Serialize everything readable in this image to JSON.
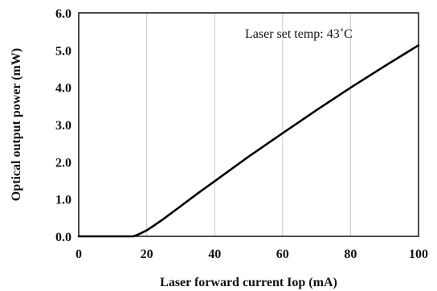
{
  "chart_data": {
    "type": "line",
    "xlabel": "Laser forward current Iop (mA)",
    "ylabel": "Optical output power (mW)",
    "annotation": "Laser set temp: 43˚C",
    "xlim": [
      0,
      100
    ],
    "ylim": [
      0,
      6
    ],
    "xticks": [
      0,
      20,
      40,
      60,
      80,
      100
    ],
    "xtick_labels": [
      "0",
      "20",
      "40",
      "60",
      "80",
      "100"
    ],
    "yticks": [
      0,
      1,
      2,
      3,
      4,
      5,
      6
    ],
    "ytick_labels": [
      "0.0",
      "1.0",
      "2.0",
      "3.0",
      "4.0",
      "5.0",
      "6.0"
    ],
    "grid": "vertical",
    "series": [
      {
        "x": [
          0,
          10,
          16,
          17,
          18,
          20,
          22,
          25,
          30,
          35,
          40,
          50,
          60,
          70,
          80,
          90,
          100
        ],
        "y": [
          0,
          0,
          0,
          0.03,
          0.07,
          0.16,
          0.28,
          0.47,
          0.81,
          1.15,
          1.48,
          2.14,
          2.77,
          3.39,
          3.99,
          4.57,
          5.13
        ]
      }
    ]
  }
}
